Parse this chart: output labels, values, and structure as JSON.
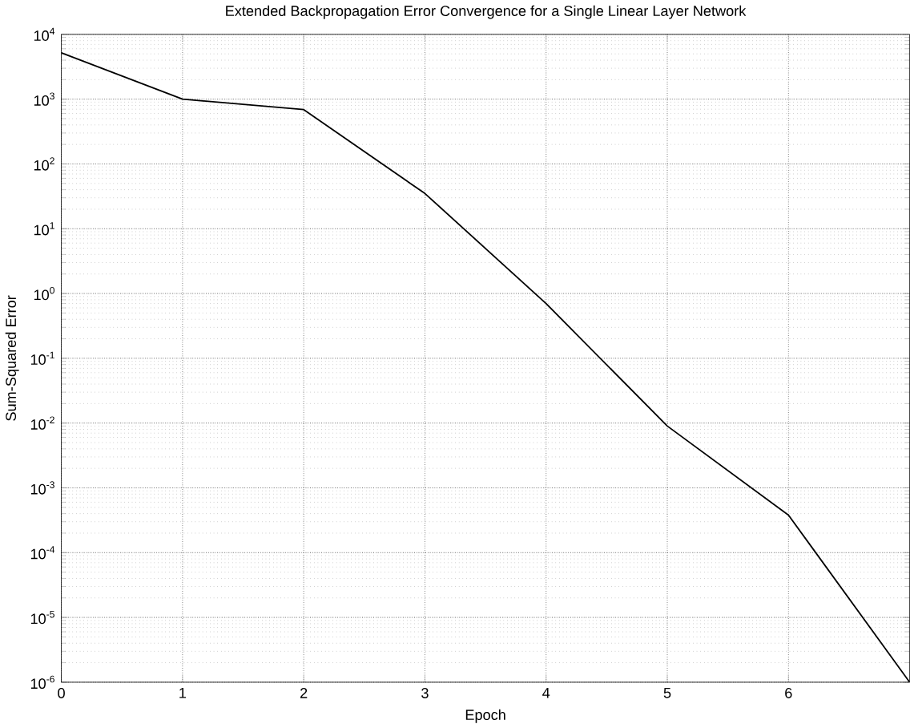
{
  "chart_data": {
    "type": "line",
    "title": "Extended Backpropagation Error Convergence for a Single Linear Layer Network",
    "xlabel": "Epoch",
    "ylabel": "Sum-Squared Error",
    "log": "y",
    "grid": true,
    "x": [
      0,
      1,
      2,
      3,
      4,
      5,
      6,
      7
    ],
    "series": [
      {
        "color": "#000000",
        "values": [
          5200,
          1000,
          690,
          35,
          0.7,
          0.009,
          0.00038,
          1e-06
        ]
      }
    ],
    "xlim": [
      0,
      7
    ],
    "xticks": [
      0,
      1,
      2,
      3,
      4,
      5,
      6
    ],
    "ylim": [
      1e-06,
      10000
    ],
    "yticks": [
      {
        "value": 1e-06,
        "label": "10$^{-6}$"
      },
      {
        "value": 1e-05,
        "label": "10$^{-5}$"
      },
      {
        "value": 0.0001,
        "label": "10$^{-4}$"
      },
      {
        "value": 0.001,
        "label": "10$^{-3}$"
      },
      {
        "value": 0.01,
        "label": "10$^{-2}$"
      },
      {
        "value": 0.1,
        "label": "10$^{-1}$"
      },
      {
        "value": 1,
        "label": "10$^{0}$"
      },
      {
        "value": 10,
        "label": "10$^{1}$"
      },
      {
        "value": 100,
        "label": "10$^{2}$"
      },
      {
        "value": 1000,
        "label": "10$^{3}$"
      },
      {
        "value": 10000,
        "label": "10$^{4}$"
      }
    ],
    "line_style": "solid",
    "marker": "none"
  }
}
